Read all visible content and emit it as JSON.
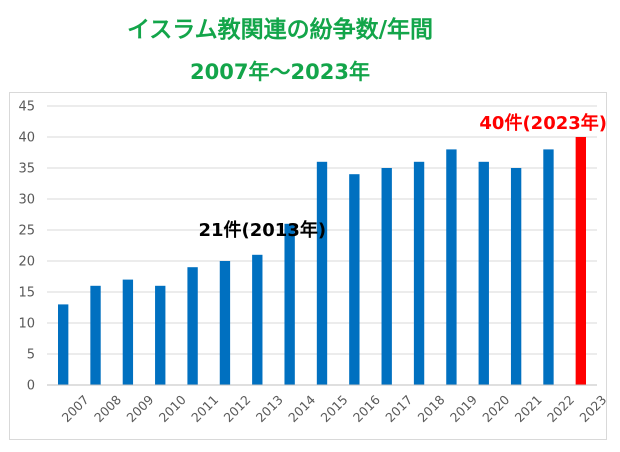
{
  "titles": {
    "main": "イスラム教関連の紛争数/年間",
    "sub": "2007年～2023年"
  },
  "chart_data": {
    "type": "bar",
    "categories": [
      "2007",
      "2008",
      "2009",
      "2010",
      "2011",
      "2012",
      "2013",
      "2014",
      "2015",
      "2016",
      "2017",
      "2018",
      "2019",
      "2020",
      "2021",
      "2022",
      "2023"
    ],
    "series": [
      {
        "values": [
          13,
          16,
          17,
          16,
          19,
          20,
          21,
          26,
          36,
          34,
          35,
          36,
          38,
          36,
          35,
          38,
          40
        ]
      }
    ],
    "ylim": [
      0,
      45
    ],
    "yticks": [
      0,
      5,
      10,
      15,
      20,
      25,
      30,
      35,
      40,
      45
    ],
    "grid": true,
    "legend": "none",
    "bar_color": "#0070c0",
    "highlight_color": "#ff0000",
    "highlight_category": "2023",
    "annotations": [
      {
        "text": "21件(2013年)",
        "category": "2013",
        "value": 21,
        "color": "#000000"
      },
      {
        "text": "40件(2023年)",
        "category": "2023",
        "value": 40,
        "color": "#ff0000"
      }
    ]
  }
}
